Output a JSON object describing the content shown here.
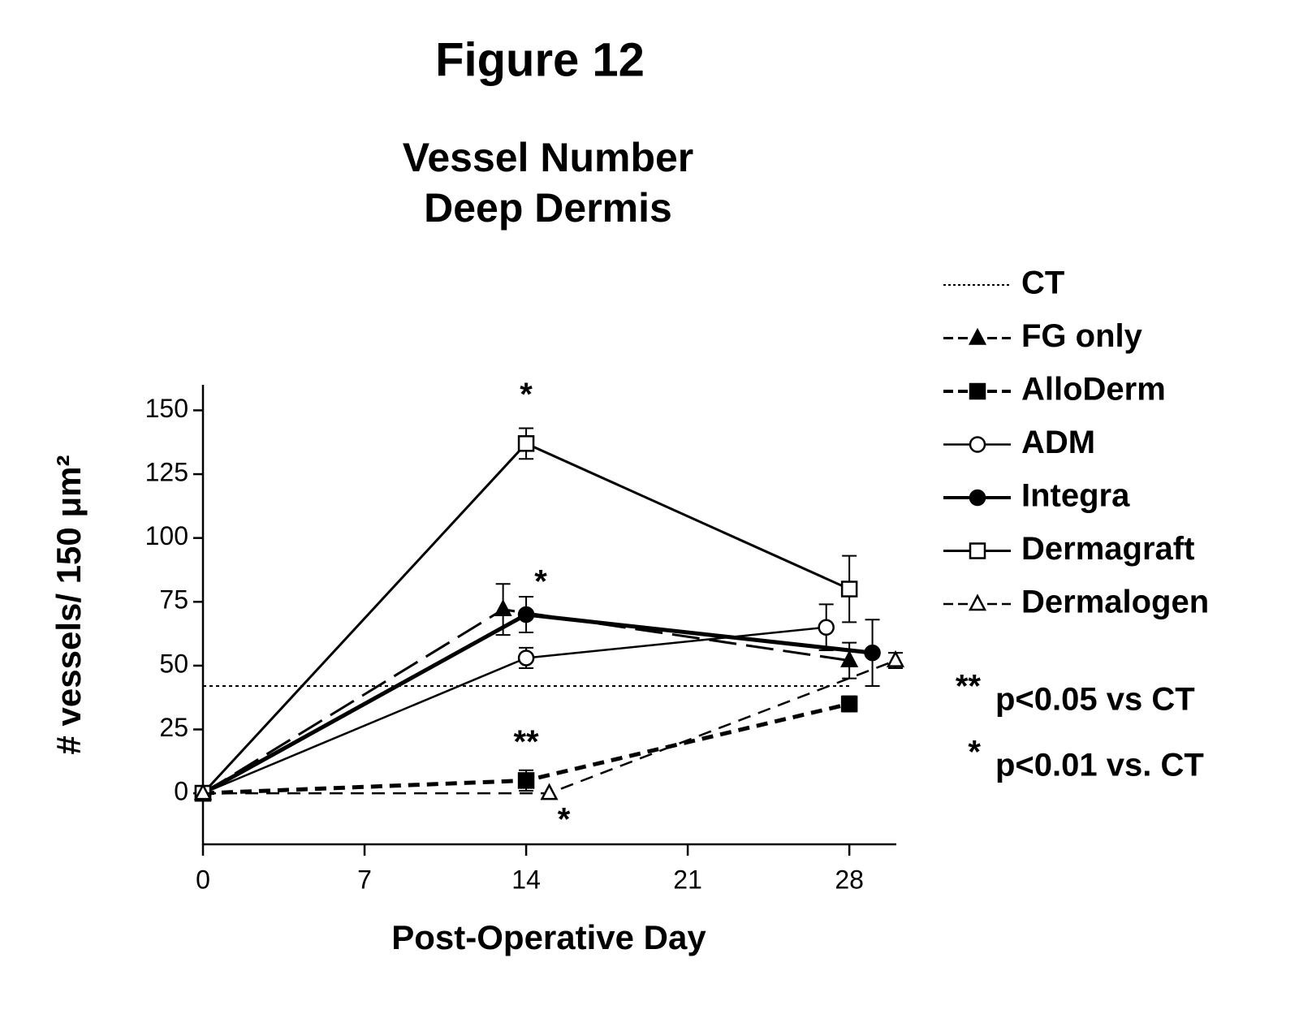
{
  "chart_data": {
    "type": "line",
    "figure_title": "Figure 12",
    "title": "Vessel Number",
    "subtitle": "Deep Dermis",
    "xlabel": "Post-Operative Day",
    "ylabel": "# vessels/ 150 μm²",
    "xlim": [
      0,
      30
    ],
    "xticks": [
      0,
      7,
      14,
      21,
      28
    ],
    "ylim": [
      -20,
      160
    ],
    "yticks": [
      0,
      25,
      50,
      75,
      100,
      125,
      150
    ],
    "series": [
      {
        "name": "CT",
        "color": "#000000",
        "linestyle": "dotted",
        "linewidth": 2,
        "marker": "none",
        "x": [
          0,
          28
        ],
        "values": [
          42,
          42
        ]
      },
      {
        "name": "FG only",
        "color": "#000000",
        "linestyle": "longdash",
        "linewidth": 3,
        "marker": "triangle-filled",
        "x": [
          0,
          13,
          28
        ],
        "values": [
          0,
          72,
          52
        ],
        "errors": [
          0,
          10,
          7
        ]
      },
      {
        "name": "AlloDerm",
        "color": "#000000",
        "linestyle": "shortdash",
        "linewidth": 5,
        "marker": "square-filled",
        "x": [
          0,
          14,
          28
        ],
        "values": [
          0,
          5,
          35
        ],
        "errors": [
          0,
          4,
          3
        ]
      },
      {
        "name": "ADM",
        "color": "#000000",
        "linestyle": "solid",
        "linewidth": 2.5,
        "marker": "circle-open",
        "x": [
          0,
          14,
          27
        ],
        "values": [
          0,
          53,
          65
        ],
        "errors": [
          0,
          4,
          9
        ]
      },
      {
        "name": "Integra",
        "color": "#000000",
        "linestyle": "solid",
        "linewidth": 5,
        "marker": "circle-filled",
        "x": [
          0,
          14,
          29
        ],
        "values": [
          0,
          70,
          55
        ],
        "errors": [
          0,
          7,
          13
        ]
      },
      {
        "name": "Dermagraft",
        "color": "#000000",
        "linestyle": "solid",
        "linewidth": 3,
        "marker": "square-open",
        "x": [
          0,
          14,
          28
        ],
        "values": [
          0,
          137,
          80
        ],
        "errors": [
          0,
          6,
          13
        ]
      },
      {
        "name": "Dermalogen",
        "color": "#000000",
        "linestyle": "dashed",
        "linewidth": 2.5,
        "marker": "triangle-open",
        "x": [
          0,
          15,
          30
        ],
        "values": [
          0,
          0,
          52
        ],
        "errors": [
          0,
          0,
          3
        ]
      }
    ],
    "annotations": [
      "*",
      "*",
      "**",
      "*"
    ],
    "notes": [
      {
        "mark": "**",
        "text": "p<0.05 vs CT"
      },
      {
        "mark": "*",
        "text": "p<0.01 vs. CT"
      }
    ]
  }
}
